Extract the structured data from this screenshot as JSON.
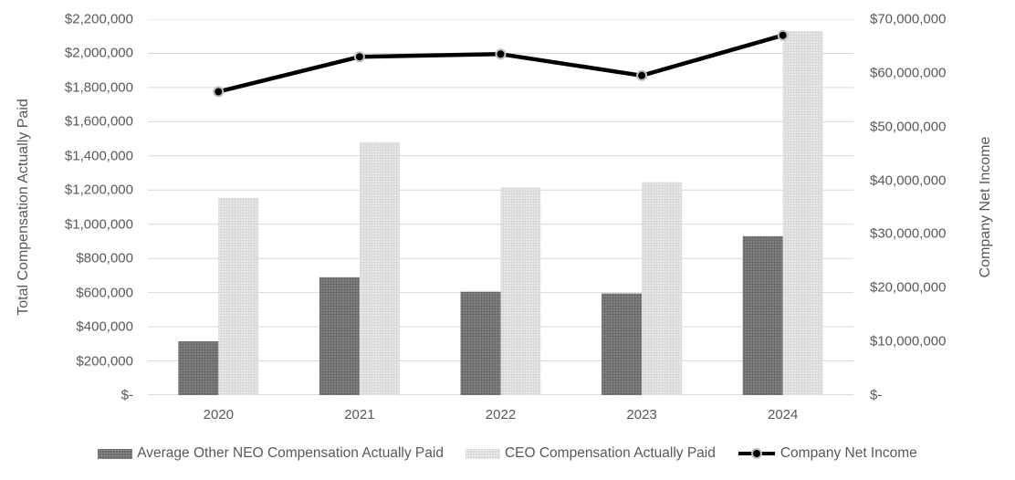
{
  "chart_data": {
    "type": "combo-bar-line",
    "title": "",
    "categories": [
      "2020",
      "2021",
      "2022",
      "2023",
      "2024"
    ],
    "series": [
      {
        "name": "Average Other NEO Compensation Actually Paid",
        "type": "bar",
        "axis": "left",
        "color": "#6a6a6a",
        "values": [
          315000,
          690000,
          605000,
          595000,
          930000
        ]
      },
      {
        "name": "CEO Compensation Actually Paid",
        "type": "bar",
        "axis": "left",
        "color": "#d8d8d8",
        "values": [
          1155000,
          1480000,
          1215000,
          1245000,
          2130000
        ]
      },
      {
        "name": "Company Net Income",
        "type": "line",
        "axis": "right",
        "color": "#000000",
        "values": [
          56500000,
          63000000,
          63500000,
          59500000,
          67000000
        ]
      }
    ],
    "left_axis": {
      "label": "Total Compensation Actually Paid",
      "min": 0,
      "max": 2200000,
      "step": 200000,
      "tick_labels": [
        "$2,200,000",
        "$2,000,000",
        "$1,800,000",
        "$1,600,000",
        "$1,400,000",
        "$1,200,000",
        "$1,000,000",
        "$800,000",
        "$600,000",
        "$400,000",
        "$200,000",
        "$-"
      ]
    },
    "right_axis": {
      "label": "Company Net Income",
      "min": 0,
      "max": 70000000,
      "step": 10000000,
      "tick_labels": [
        "$70,000,000",
        "$60,000,000",
        "$50,000,000",
        "$40,000,000",
        "$30,000,000",
        "$20,000,000",
        "$10,000,000",
        "$-"
      ]
    },
    "x_axis": {
      "labels": [
        "2020",
        "2021",
        "2022",
        "2023",
        "2024"
      ]
    },
    "grid": true,
    "legend_position": "bottom",
    "legend": [
      "Average Other NEO Compensation Actually Paid",
      "CEO Compensation Actually Paid",
      "Company Net Income"
    ]
  },
  "colors": {
    "bar_dark": "#6a6a6a",
    "bar_dark_dot": "#929292",
    "bar_light": "#d8d8d8",
    "bar_light_dot": "#f5f5f5",
    "line": "#000000",
    "marker_fill": "#000000",
    "marker_ring": "#bfbfbf",
    "gridline": "#d9d9d9",
    "axis_line": "#d9d9d9",
    "axis_text": "#595959",
    "background": "#ffffff"
  }
}
